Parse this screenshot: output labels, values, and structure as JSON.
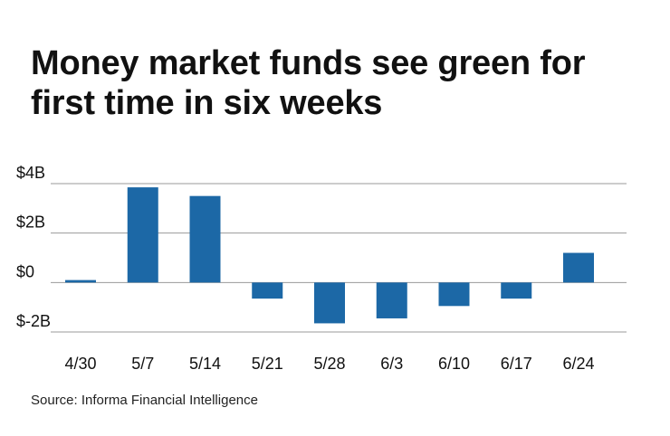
{
  "chart_data": {
    "type": "bar",
    "title": "Money market funds see green for first time in six weeks",
    "source": "Source: Informa Financial Intelligence",
    "categories": [
      "4/30",
      "5/7",
      "5/14",
      "5/21",
      "5/28",
      "6/3",
      "6/10",
      "6/17",
      "6/24"
    ],
    "values": [
      0.1,
      3.85,
      3.5,
      -0.65,
      -1.65,
      -1.45,
      -0.95,
      -0.65,
      1.2
    ],
    "ylim": [
      -2,
      4
    ],
    "yticks": [
      4,
      2,
      0,
      -2
    ],
    "ytick_labels": [
      "$4B",
      "$2B",
      "$0",
      "$-2B"
    ],
    "xlabel": "",
    "ylabel": "",
    "grid": true,
    "bar_color": "#1c68a6",
    "grid_color": "#9a9a9a"
  }
}
